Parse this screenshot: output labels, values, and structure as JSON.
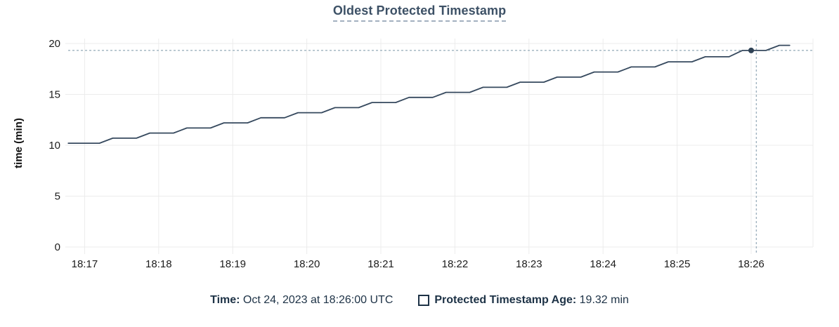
{
  "header": {
    "title": "Oldest Protected Timestamp"
  },
  "colors": {
    "title": "#3d5166",
    "title_underline": "#a3b1c0",
    "legend_text": "#1d3246",
    "series_line": "#36495e",
    "hover_dot": "#2f4255",
    "crosshair": "#9fb2bf",
    "grid": "#ececec",
    "tick_text": "#1c1c1c"
  },
  "chart_data": {
    "type": "line",
    "title": "Oldest Protected Timestamp",
    "xlabel": "",
    "ylabel": "time (min)",
    "ylim": [
      0,
      20
    ],
    "yticks": [
      0,
      5,
      10,
      15,
      20
    ],
    "xticks": [
      {
        "label": "18:17",
        "t": 1
      },
      {
        "label": "18:18",
        "t": 2
      },
      {
        "label": "18:19",
        "t": 3
      },
      {
        "label": "18:20",
        "t": 4
      },
      {
        "label": "18:21",
        "t": 5
      },
      {
        "label": "18:22",
        "t": 6
      },
      {
        "label": "18:23",
        "t": 7
      },
      {
        "label": "18:24",
        "t": 8
      },
      {
        "label": "18:25",
        "t": 9
      },
      {
        "label": "18:26",
        "t": 10
      }
    ],
    "grid": true,
    "legend_position": "bottom",
    "series": [
      {
        "name": "Protected Timestamp Age",
        "unit": "min",
        "points": [
          [
            0.78,
            10.2
          ],
          [
            1.2,
            10.2
          ],
          [
            1.38,
            10.7
          ],
          [
            1.7,
            10.7
          ],
          [
            1.88,
            11.2
          ],
          [
            2.2,
            11.2
          ],
          [
            2.38,
            11.7
          ],
          [
            2.7,
            11.7
          ],
          [
            2.88,
            12.2
          ],
          [
            3.2,
            12.2
          ],
          [
            3.38,
            12.7
          ],
          [
            3.7,
            12.7
          ],
          [
            3.88,
            13.2
          ],
          [
            4.2,
            13.2
          ],
          [
            4.38,
            13.7
          ],
          [
            4.7,
            13.7
          ],
          [
            4.88,
            14.2
          ],
          [
            5.2,
            14.2
          ],
          [
            5.38,
            14.7
          ],
          [
            5.7,
            14.7
          ],
          [
            5.88,
            15.2
          ],
          [
            6.2,
            15.2
          ],
          [
            6.38,
            15.7
          ],
          [
            6.7,
            15.7
          ],
          [
            6.88,
            16.2
          ],
          [
            7.2,
            16.2
          ],
          [
            7.38,
            16.7
          ],
          [
            7.7,
            16.7
          ],
          [
            7.88,
            17.2
          ],
          [
            8.2,
            17.2
          ],
          [
            8.38,
            17.7
          ],
          [
            8.7,
            17.7
          ],
          [
            8.88,
            18.2
          ],
          [
            9.2,
            18.2
          ],
          [
            9.38,
            18.7
          ],
          [
            9.7,
            18.7
          ],
          [
            9.88,
            19.32
          ],
          [
            10.2,
            19.32
          ],
          [
            10.38,
            19.82
          ],
          [
            10.52,
            19.82
          ]
        ]
      }
    ],
    "hover": {
      "t": 10.0,
      "crosshair_t": 10.07,
      "value": 19.32,
      "time_text": "Oct 24, 2023 at 18:26:00 UTC",
      "value_text": "19.32 min"
    }
  },
  "legend": {
    "time_label": "Time:",
    "time_value": " Oct 24, 2023 at 18:26:00 UTC",
    "series_label": "Protected Timestamp Age:",
    "series_value": " 19.32 min"
  }
}
